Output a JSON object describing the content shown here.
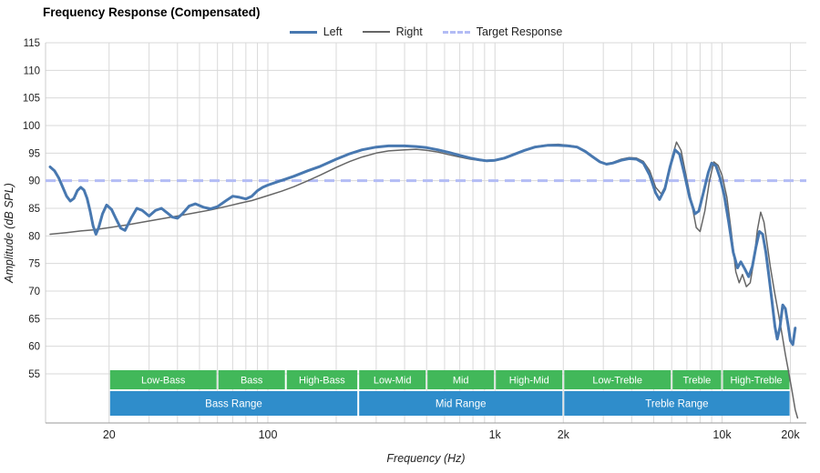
{
  "title": "Frequency Response (Compensated)",
  "axes": {
    "x_label": "Frequency (Hz)",
    "y_label": "Amplitude (dB SPL)",
    "x_min": 10.5,
    "x_max": 23500,
    "y_label_min": 55,
    "y_label_max": 115,
    "x_ticks": [
      {
        "f": 20,
        "label": "20"
      },
      {
        "f": 100,
        "label": "100"
      },
      {
        "f": 1000,
        "label": "1k"
      },
      {
        "f": 2000,
        "label": "2k"
      },
      {
        "f": 10000,
        "label": "10k"
      },
      {
        "f": 20000,
        "label": "20k"
      }
    ],
    "y_ticks": [
      55,
      60,
      65,
      70,
      75,
      80,
      85,
      90,
      95,
      100,
      105,
      110,
      115
    ]
  },
  "colors": {
    "left": "#4878b0",
    "right": "#666666",
    "target": "#b3bcf5",
    "grid": "#d9d9d9",
    "spine": "#cccccc",
    "axis_line": "#999999",
    "tick_text": "#222222",
    "band_green": "#42b85a",
    "band_blue": "#2f8dcb",
    "band_text": "#ffffff"
  },
  "chart_data": {
    "type": "line",
    "x_scale": "log",
    "title": "Frequency Response (Compensated)",
    "xlabel": "Frequency (Hz)",
    "ylabel": "Amplitude (dB SPL)",
    "xlim": [
      10.5,
      23500
    ],
    "ylim": [
      55,
      115
    ],
    "grid": true,
    "legend_position": "top-center",
    "target": {
      "name": "Target Response",
      "db": 90,
      "color": "#b3bcf5",
      "dashed": true
    },
    "series": [
      {
        "name": "Left",
        "color": "#4878b0",
        "width": 3,
        "points": [
          [
            11,
            92.5
          ],
          [
            11.5,
            91.8
          ],
          [
            12,
            90.5
          ],
          [
            12.5,
            88.8
          ],
          [
            13,
            87.2
          ],
          [
            13.5,
            86.3
          ],
          [
            14,
            86.8
          ],
          [
            14.5,
            88.2
          ],
          [
            15,
            88.8
          ],
          [
            15.5,
            88.3
          ],
          [
            16,
            86.8
          ],
          [
            16.5,
            84.5
          ],
          [
            17,
            81.8
          ],
          [
            17.5,
            80.3
          ],
          [
            18,
            81.5
          ],
          [
            18.7,
            84
          ],
          [
            19.5,
            85.6
          ],
          [
            20.5,
            84.8
          ],
          [
            21.5,
            83
          ],
          [
            22.5,
            81.4
          ],
          [
            23.5,
            81
          ],
          [
            25,
            83.2
          ],
          [
            26.5,
            85
          ],
          [
            28,
            84.6
          ],
          [
            30,
            83.6
          ],
          [
            32,
            84.6
          ],
          [
            34,
            85
          ],
          [
            36,
            84.2
          ],
          [
            38,
            83.4
          ],
          [
            40,
            83.2
          ],
          [
            42,
            84
          ],
          [
            45,
            85.4
          ],
          [
            48,
            85.8
          ],
          [
            52,
            85.2
          ],
          [
            56,
            84.9
          ],
          [
            60,
            85.3
          ],
          [
            65,
            86.3
          ],
          [
            70,
            87.2
          ],
          [
            75,
            87
          ],
          [
            80,
            86.7
          ],
          [
            85,
            87.2
          ],
          [
            90,
            88.2
          ],
          [
            95,
            88.8
          ],
          [
            100,
            89.2
          ],
          [
            110,
            89.8
          ],
          [
            120,
            90.3
          ],
          [
            130,
            90.8
          ],
          [
            150,
            91.8
          ],
          [
            170,
            92.6
          ],
          [
            200,
            93.9
          ],
          [
            230,
            94.9
          ],
          [
            260,
            95.6
          ],
          [
            300,
            96.1
          ],
          [
            340,
            96.3
          ],
          [
            400,
            96.3
          ],
          [
            450,
            96.2
          ],
          [
            500,
            96
          ],
          [
            560,
            95.6
          ],
          [
            630,
            95.1
          ],
          [
            700,
            94.6
          ],
          [
            780,
            94.1
          ],
          [
            850,
            93.8
          ],
          [
            920,
            93.6
          ],
          [
            1000,
            93.7
          ],
          [
            1100,
            94.1
          ],
          [
            1200,
            94.7
          ],
          [
            1350,
            95.5
          ],
          [
            1500,
            96.1
          ],
          [
            1700,
            96.4
          ],
          [
            1900,
            96.4
          ],
          [
            2100,
            96.3
          ],
          [
            2300,
            96.1
          ],
          [
            2500,
            95.3
          ],
          [
            2700,
            94.3
          ],
          [
            2900,
            93.4
          ],
          [
            3100,
            93
          ],
          [
            3300,
            93.2
          ],
          [
            3600,
            93.7
          ],
          [
            3900,
            94
          ],
          [
            4200,
            93.9
          ],
          [
            4500,
            93.2
          ],
          [
            4800,
            91
          ],
          [
            5100,
            87.8
          ],
          [
            5300,
            86.6
          ],
          [
            5600,
            88.5
          ],
          [
            5900,
            92.5
          ],
          [
            6200,
            95.6
          ],
          [
            6500,
            94.8
          ],
          [
            6800,
            91.5
          ],
          [
            7200,
            87
          ],
          [
            7600,
            84
          ],
          [
            7900,
            84.5
          ],
          [
            8300,
            88
          ],
          [
            8700,
            91.5
          ],
          [
            9000,
            93.2
          ],
          [
            9400,
            92.7
          ],
          [
            9800,
            90.5
          ],
          [
            10200,
            87.5
          ],
          [
            10700,
            82.5
          ],
          [
            11200,
            77
          ],
          [
            11700,
            74.2
          ],
          [
            12100,
            75.3
          ],
          [
            12600,
            74
          ],
          [
            13100,
            72.6
          ],
          [
            13600,
            74.5
          ],
          [
            14100,
            78
          ],
          [
            14600,
            80.8
          ],
          [
            15100,
            80.3
          ],
          [
            15600,
            77
          ],
          [
            16100,
            72.5
          ],
          [
            16600,
            68
          ],
          [
            17100,
            63.5
          ],
          [
            17500,
            61.3
          ],
          [
            18000,
            63.5
          ],
          [
            18500,
            67.5
          ],
          [
            19000,
            66.8
          ],
          [
            19500,
            64
          ],
          [
            20000,
            61
          ],
          [
            20500,
            60.3
          ],
          [
            21000,
            63.3
          ]
        ]
      },
      {
        "name": "Right",
        "color": "#666666",
        "width": 1.5,
        "points": [
          [
            11,
            80.3
          ],
          [
            13,
            80.6
          ],
          [
            15,
            80.9
          ],
          [
            17,
            81.1
          ],
          [
            20,
            81.5
          ],
          [
            24,
            82
          ],
          [
            28,
            82.5
          ],
          [
            33,
            83
          ],
          [
            40,
            83.6
          ],
          [
            48,
            84.2
          ],
          [
            56,
            84.7
          ],
          [
            65,
            85.3
          ],
          [
            75,
            85.9
          ],
          [
            85,
            86.4
          ],
          [
            100,
            87.3
          ],
          [
            115,
            88.1
          ],
          [
            130,
            88.9
          ],
          [
            150,
            90
          ],
          [
            170,
            91
          ],
          [
            200,
            92.4
          ],
          [
            230,
            93.5
          ],
          [
            260,
            94.3
          ],
          [
            300,
            95
          ],
          [
            340,
            95.4
          ],
          [
            400,
            95.6
          ],
          [
            450,
            95.7
          ],
          [
            500,
            95.5
          ],
          [
            560,
            95.2
          ],
          [
            630,
            94.7
          ],
          [
            700,
            94.3
          ],
          [
            780,
            93.9
          ],
          [
            850,
            93.7
          ],
          [
            920,
            93.5
          ],
          [
            1000,
            93.6
          ],
          [
            1100,
            94
          ],
          [
            1200,
            94.6
          ],
          [
            1350,
            95.5
          ],
          [
            1500,
            96.2
          ],
          [
            1700,
            96.5
          ],
          [
            1900,
            96.6
          ],
          [
            2100,
            96.4
          ],
          [
            2300,
            96.2
          ],
          [
            2500,
            95.4
          ],
          [
            2700,
            94.4
          ],
          [
            2900,
            93.5
          ],
          [
            3100,
            93.1
          ],
          [
            3300,
            93.3
          ],
          [
            3600,
            93.9
          ],
          [
            3900,
            94.2
          ],
          [
            4200,
            94.1
          ],
          [
            4500,
            93.5
          ],
          [
            4800,
            91.8
          ],
          [
            5100,
            88.8
          ],
          [
            5400,
            87.6
          ],
          [
            5700,
            89.5
          ],
          [
            6000,
            94
          ],
          [
            6300,
            97
          ],
          [
            6600,
            95.5
          ],
          [
            6900,
            91.5
          ],
          [
            7300,
            86.5
          ],
          [
            7700,
            81.5
          ],
          [
            8000,
            80.8
          ],
          [
            8400,
            84.5
          ],
          [
            8800,
            90
          ],
          [
            9200,
            93.4
          ],
          [
            9600,
            92.8
          ],
          [
            10000,
            91
          ],
          [
            10500,
            87
          ],
          [
            11000,
            80.5
          ],
          [
            11500,
            73.5
          ],
          [
            11900,
            71.5
          ],
          [
            12300,
            73
          ],
          [
            12800,
            70.8
          ],
          [
            13300,
            71.5
          ],
          [
            13800,
            75.5
          ],
          [
            14300,
            81
          ],
          [
            14800,
            84.3
          ],
          [
            15300,
            82.5
          ],
          [
            15800,
            78.5
          ],
          [
            16300,
            74.5
          ],
          [
            17000,
            70
          ],
          [
            17700,
            66
          ],
          [
            18400,
            62
          ],
          [
            19000,
            58.5
          ],
          [
            19600,
            55.5
          ],
          [
            20300,
            52
          ],
          [
            21000,
            48.5
          ],
          [
            21500,
            47
          ]
        ]
      }
    ],
    "bands": {
      "sub_bands": [
        {
          "label": "Low-Bass",
          "from": 20,
          "to": 60
        },
        {
          "label": "Bass",
          "from": 60,
          "to": 120
        },
        {
          "label": "High-Bass",
          "from": 120,
          "to": 250
        },
        {
          "label": "Low-Mid",
          "from": 250,
          "to": 500
        },
        {
          "label": "Mid",
          "from": 500,
          "to": 1000
        },
        {
          "label": "High-Mid",
          "from": 1000,
          "to": 2000
        },
        {
          "label": "Low-Treble",
          "from": 2000,
          "to": 6000
        },
        {
          "label": "Treble",
          "from": 6000,
          "to": 10000
        },
        {
          "label": "High-Treble",
          "from": 10000,
          "to": 20000
        }
      ],
      "main_bands": [
        {
          "label": "Bass Range",
          "from": 20,
          "to": 250
        },
        {
          "label": "Mid Range",
          "from": 250,
          "to": 2000
        },
        {
          "label": "Treble Range",
          "from": 2000,
          "to": 20000
        }
      ]
    }
  }
}
